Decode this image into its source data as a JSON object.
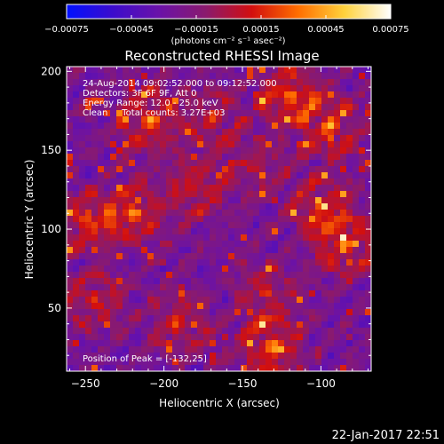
{
  "chart_data": {
    "type": "heatmap",
    "title": "Reconstructed RHESSI Image",
    "xlabel": "Heliocentric X (arcsec)",
    "ylabel": "Heliocentric Y (arcsec)",
    "xlim": [
      -262,
      -68
    ],
    "ylim": [
      10,
      203
    ],
    "xticks": [
      -250,
      -200,
      -150,
      -100
    ],
    "xtick_labels": [
      "−250",
      "−200",
      "−150",
      "−100"
    ],
    "yticks": [
      50,
      100,
      150,
      200
    ],
    "ytick_labels": [
      "50",
      "100",
      "150",
      "200"
    ],
    "colorbar": {
      "min": -0.00075,
      "max": 0.00075,
      "ticks": [
        -0.00075,
        -0.00045,
        -0.00015,
        0.00015,
        0.00045,
        0.00075
      ],
      "tick_labels": [
        "−0.00075",
        "−0.00045",
        "−0.00015",
        "0.00015",
        "0.00045",
        "0.00075"
      ],
      "units_text": "(photons cm⁻² s⁻¹ asec⁻²)",
      "colors": [
        "#0010ff",
        "#3c0ccc",
        "#6a12a8",
        "#8a1a6e",
        "#d20f0f",
        "#ff6e00",
        "#ffd23c",
        "#ffffff"
      ]
    },
    "annotations": [
      "24-Aug-2014 09:02:52.000 to 09:12:52.000",
      "Detectors: 3F 6F 9F, Att 0",
      "Energy Range: 12.0 - 25.0 keV",
      "Clean     Total counts: 3.27E+03"
    ],
    "peak_label": "Position of Peak = [-132,25]",
    "peak": [
      -132,
      25
    ],
    "hotspots": [
      {
        "x": -210,
        "y": 170,
        "strength": 0.9
      },
      {
        "x": -220,
        "y": 110,
        "strength": 0.9
      },
      {
        "x": -180,
        "y": 125,
        "strength": 0.7
      },
      {
        "x": -168,
        "y": 170,
        "strength": 0.6
      },
      {
        "x": -120,
        "y": 185,
        "strength": 1.0
      },
      {
        "x": -95,
        "y": 165,
        "strength": 0.85
      },
      {
        "x": -100,
        "y": 115,
        "strength": 0.8
      },
      {
        "x": -85,
        "y": 90,
        "strength": 0.9
      },
      {
        "x": -140,
        "y": 140,
        "strength": 0.5
      },
      {
        "x": -135,
        "y": 60,
        "strength": 0.6
      },
      {
        "x": -132,
        "y": 25,
        "strength": 1.0
      },
      {
        "x": -190,
        "y": 40,
        "strength": 0.65
      },
      {
        "x": -245,
        "y": 55,
        "strength": 0.7
      },
      {
        "x": -250,
        "y": 105,
        "strength": 0.75
      }
    ]
  },
  "footer": {
    "timestamp": "22-Jan-2017 22:51"
  }
}
